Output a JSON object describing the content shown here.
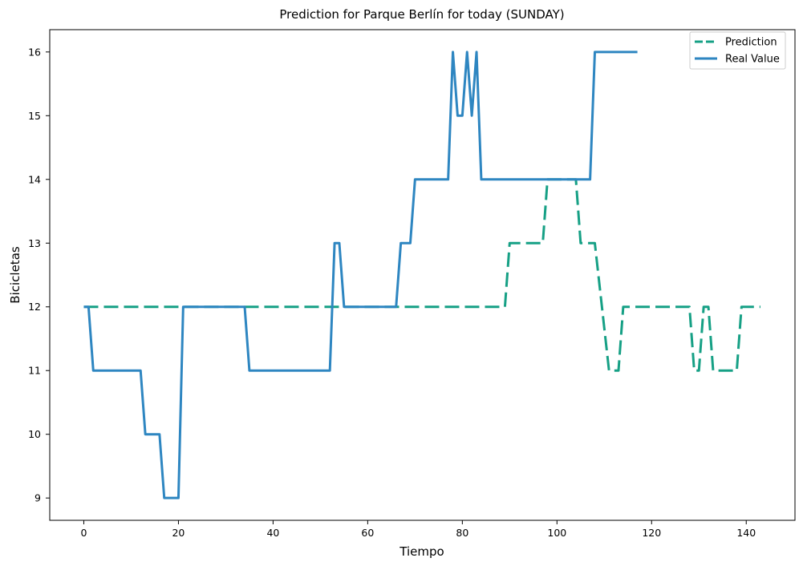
{
  "chart_data": {
    "type": "line",
    "title": "Prediction for Parque Berlín for today (SUNDAY)",
    "xlabel": "Tiempo",
    "ylabel": "Bicicletas",
    "xlim": [
      -7.2,
      150.3
    ],
    "ylim": [
      8.65,
      16.35
    ],
    "xticks": [
      0,
      20,
      40,
      60,
      80,
      100,
      120,
      140
    ],
    "yticks": [
      9,
      10,
      11,
      12,
      13,
      14,
      15,
      16
    ],
    "grid": false,
    "legend_position": "top-right",
    "series": [
      {
        "name": "Prediction",
        "style": "dashed",
        "color": "#16a085",
        "points": [
          [
            0,
            12
          ],
          [
            89,
            12
          ],
          [
            90,
            13
          ],
          [
            97,
            13
          ],
          [
            98,
            14
          ],
          [
            104,
            14
          ],
          [
            105,
            13
          ],
          [
            108,
            13
          ],
          [
            111,
            11
          ],
          [
            113,
            11
          ],
          [
            114,
            12
          ],
          [
            128,
            12
          ],
          [
            129,
            11
          ],
          [
            130,
            11
          ],
          [
            131,
            12
          ],
          [
            132,
            12
          ],
          [
            133,
            11
          ],
          [
            138,
            11
          ],
          [
            139,
            12
          ],
          [
            143,
            12
          ]
        ]
      },
      {
        "name": "Real Value",
        "style": "solid",
        "color": "#2e86c1",
        "points": [
          [
            0,
            12
          ],
          [
            1,
            12
          ],
          [
            2,
            11
          ],
          [
            12,
            11
          ],
          [
            13,
            10
          ],
          [
            16,
            10
          ],
          [
            17,
            9
          ],
          [
            20,
            9
          ],
          [
            21,
            12
          ],
          [
            34,
            12
          ],
          [
            35,
            11
          ],
          [
            52,
            11
          ],
          [
            53,
            13
          ],
          [
            54,
            13
          ],
          [
            55,
            12
          ],
          [
            66,
            12
          ],
          [
            67,
            13
          ],
          [
            69,
            13
          ],
          [
            70,
            14
          ],
          [
            77,
            14
          ],
          [
            78,
            16
          ],
          [
            79,
            15
          ],
          [
            80,
            15
          ],
          [
            81,
            16
          ],
          [
            82,
            15
          ],
          [
            83,
            16
          ],
          [
            84,
            14
          ],
          [
            107,
            14
          ],
          [
            108,
            16
          ],
          [
            117,
            16
          ]
        ]
      }
    ]
  }
}
